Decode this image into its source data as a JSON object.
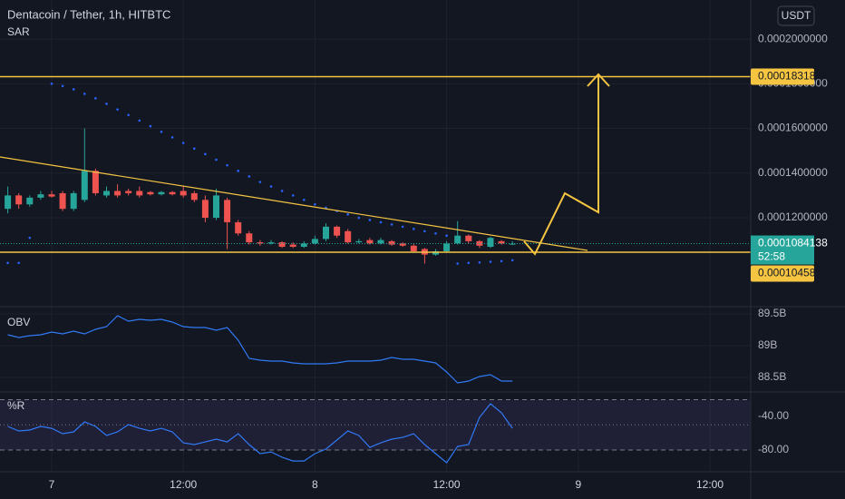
{
  "chart_data": [
    {
      "type": "candlestick",
      "title": "Dentacoin / Tether, 1h, HITBTC",
      "currency": "USDT",
      "x": [
        -4,
        -3,
        -2,
        -1,
        0,
        1,
        2,
        3,
        4,
        5,
        6,
        7,
        8,
        9,
        10,
        11,
        12,
        13,
        14,
        15,
        16,
        17,
        18,
        19,
        20,
        21,
        22,
        23,
        24,
        25,
        26,
        27,
        28,
        29,
        30,
        31,
        32,
        33,
        34,
        35,
        36,
        37,
        38,
        39,
        40,
        41,
        42
      ],
      "open": [
        0.000124,
        0.00013,
        0.000126,
        0.000129,
        0.0001305,
        0.000131,
        0.000124,
        0.000128,
        0.000141,
        0.00013,
        0.000132,
        0.000132,
        0.000132,
        0.0001315,
        0.0001305,
        0.0001315,
        0.000132,
        0.000131,
        0.000128,
        0.00012,
        0.000128,
        0.000118,
        0.000113,
        0.000109,
        0.0001085,
        0.000109,
        0.000108,
        0.000107,
        0.0001085,
        0.0001105,
        0.000116,
        0.000114,
        0.000109,
        0.00011,
        0.0001085,
        0.0001095,
        0.0001085,
        0.0001075,
        0.000106,
        0.0001035,
        0.000105,
        0.0001085,
        0.000112,
        0.0001095,
        0.000107,
        0.0001095,
        0.000108
      ],
      "high": [
        0.000134,
        0.000131,
        0.00013,
        0.000132,
        0.000132,
        0.000132,
        0.000132,
        0.00016,
        0.000142,
        0.000134,
        0.000135,
        0.000133,
        0.000134,
        0.000132,
        0.000132,
        0.000132,
        0.000134,
        0.000132,
        0.00013,
        0.000133,
        0.000129,
        0.000119,
        0.000114,
        0.00011,
        0.00011,
        0.0001095,
        0.000109,
        0.0001095,
        0.000112,
        0.0001175,
        0.0001165,
        0.000115,
        0.0001105,
        0.000111,
        0.000111,
        0.00011,
        0.000109,
        0.0001085,
        0.0001065,
        0.000106,
        0.0001095,
        0.0001185,
        0.0001125,
        0.00011,
        0.0001115,
        0.00011,
        0.0001095
      ],
      "low": [
        0.000122,
        0.000124,
        0.000125,
        0.000128,
        0.000129,
        0.000123,
        0.000123,
        0.000127,
        0.00013,
        0.000129,
        0.000129,
        0.00013,
        0.000129,
        0.00013,
        0.00013,
        0.00013,
        0.000129,
        0.000127,
        0.000118,
        0.000119,
        0.000106,
        0.000112,
        0.000108,
        0.0001075,
        0.000108,
        0.0001065,
        0.0001065,
        0.0001065,
        0.000108,
        0.0001095,
        0.000111,
        0.0001085,
        0.0001085,
        0.000108,
        0.000108,
        0.0001075,
        0.000107,
        0.0001045,
        9.95e-05,
        0.000103,
        0.0001045,
        0.000108,
        0.0001085,
        0.0001065,
        0.0001065,
        0.000108,
        0.0001078
      ],
      "close": [
        0.00013,
        0.000126,
        0.000129,
        0.0001305,
        0.0001295,
        0.000124,
        0.000131,
        0.000141,
        0.000131,
        0.000132,
        0.00013,
        0.000131,
        0.00013,
        0.0001305,
        0.0001315,
        0.0001305,
        0.00013,
        0.000128,
        0.00012,
        0.00013,
        0.000118,
        0.000113,
        0.000109,
        0.0001085,
        0.000109,
        0.000107,
        0.000107,
        0.0001085,
        0.0001105,
        0.000116,
        0.000112,
        0.000109,
        0.0001095,
        0.0001085,
        0.00011,
        0.000108,
        0.0001075,
        0.000105,
        0.0001035,
        0.000105,
        0.0001085,
        0.000112,
        0.0001095,
        0.0001075,
        0.000111,
        0.0001085,
        0.0001084
      ],
      "up_color": "#26a69a",
      "down_color": "#ef5350",
      "series": [
        {
          "name": "SAR",
          "color": "#2962ff",
          "values": [
            9.98e-05,
            9.98e-05,
            0.000111,
            null,
            0.00018,
            0.000179,
            0.0001775,
            0.0001755,
            0.0001735,
            0.000171,
            0.0001685,
            0.000166,
            0.0001635,
            0.000161,
            0.0001585,
            0.000156,
            0.0001535,
            0.000151,
            0.0001485,
            0.000146,
            0.0001435,
            0.000141,
            0.0001385,
            0.000136,
            0.000134,
            0.000132,
            0.00013,
            0.000128,
            0.000126,
            0.0001245,
            0.000123,
            0.0001215,
            0.00012,
            0.000119,
            0.000118,
            0.000117,
            0.000116,
            0.000115,
            0.000114,
            0.000113,
            0.000112,
            9.95e-05,
            9.98e-05,
            0.0001,
            0.0001003,
            0.0001006,
            0.000101
          ]
        }
      ],
      "xlim": [
        -4.71,
        63.72
      ],
      "xticks": [
        {
          "value": 0,
          "label": "7"
        },
        {
          "value": 12,
          "label": "12:00"
        },
        {
          "value": 24,
          "label": "8"
        },
        {
          "value": 36,
          "label": "12:00"
        },
        {
          "value": 48,
          "label": "9"
        },
        {
          "value": 60,
          "label": "12:00"
        }
      ],
      "ylim": [
        8.02e-05,
        0.0002175
      ],
      "yticks": [
        {
          "value": 0.00012,
          "label": "0.0001200000"
        },
        {
          "value": 0.00014,
          "label": "0.0001400000"
        },
        {
          "value": 0.00016,
          "label": "0.0001600000"
        },
        {
          "value": 0.00018,
          "label": "0.0001800000"
        },
        {
          "value": 0.0002,
          "label": "0.0002000000"
        }
      ],
      "hlines": [
        0.0001831839,
        0.0001045823
      ],
      "hline_color": "#f5c542",
      "last_price": 0.0001084138,
      "countdown": "52:58",
      "grid": true
    },
    {
      "type": "line",
      "title": "OBV",
      "color": "#3179f5",
      "values": [
        89171400000,
        89128600000,
        89157100000,
        89171400000,
        89214300000,
        89185700000,
        89228600000,
        89185700000,
        89257100000,
        89300000000,
        89471400000,
        89385700000,
        89414300000,
        89400000000,
        89414300000,
        89371400000,
        89300000000,
        89285700000,
        89285700000,
        89242900000,
        89285700000,
        89085700000,
        88800000000,
        88771400000,
        88757100000,
        88757100000,
        88728600000,
        88714300000,
        88714300000,
        88714300000,
        88728600000,
        88757100000,
        88757100000,
        88757100000,
        88771400000,
        88814300000,
        88785700000,
        88785700000,
        88757100000,
        88728600000,
        88585700000,
        88414300000,
        88442900000,
        88514300000,
        88542900000,
        88442900000,
        88442900000
      ],
      "ylim": [
        88271000000,
        89614000000
      ],
      "yticks": [
        {
          "value": 88500000000,
          "label": "88.5B"
        },
        {
          "value": 89000000000,
          "label": "89B"
        },
        {
          "value": 89500000000,
          "label": "89.5B"
        }
      ],
      "grid": true
    },
    {
      "type": "line",
      "title": "%R",
      "color": "#3179f5",
      "values": [
        -51.9,
        -57.3,
        -56.2,
        -51.9,
        -54.1,
        -60.5,
        -58.4,
        -46.5,
        -51.9,
        -62.7,
        -58.4,
        -49.7,
        -54.1,
        -57.3,
        -54.1,
        -58.4,
        -71.4,
        -73.5,
        -70.3,
        -67,
        -70.3,
        -60.5,
        -73.5,
        -84.3,
        -82.2,
        -88.6,
        -93,
        -93,
        -84.3,
        -78.9,
        -68.1,
        -57.3,
        -62.7,
        -76.8,
        -71.4,
        -67,
        -64.9,
        -60.5,
        -73.5,
        -84.3,
        -95.1,
        -75.7,
        -73.5,
        -41.1,
        -24.9,
        -35.7,
        -54.1
      ],
      "ylim": [
        -105.9,
        -10.8
      ],
      "yticks": [
        {
          "value": -80,
          "label": "-80.00"
        },
        {
          "value": -40,
          "label": "-40.00"
        }
      ],
      "bands": [
        -20,
        -50,
        -80
      ],
      "band_color": "#7e57c2",
      "grid": true
    }
  ]
}
